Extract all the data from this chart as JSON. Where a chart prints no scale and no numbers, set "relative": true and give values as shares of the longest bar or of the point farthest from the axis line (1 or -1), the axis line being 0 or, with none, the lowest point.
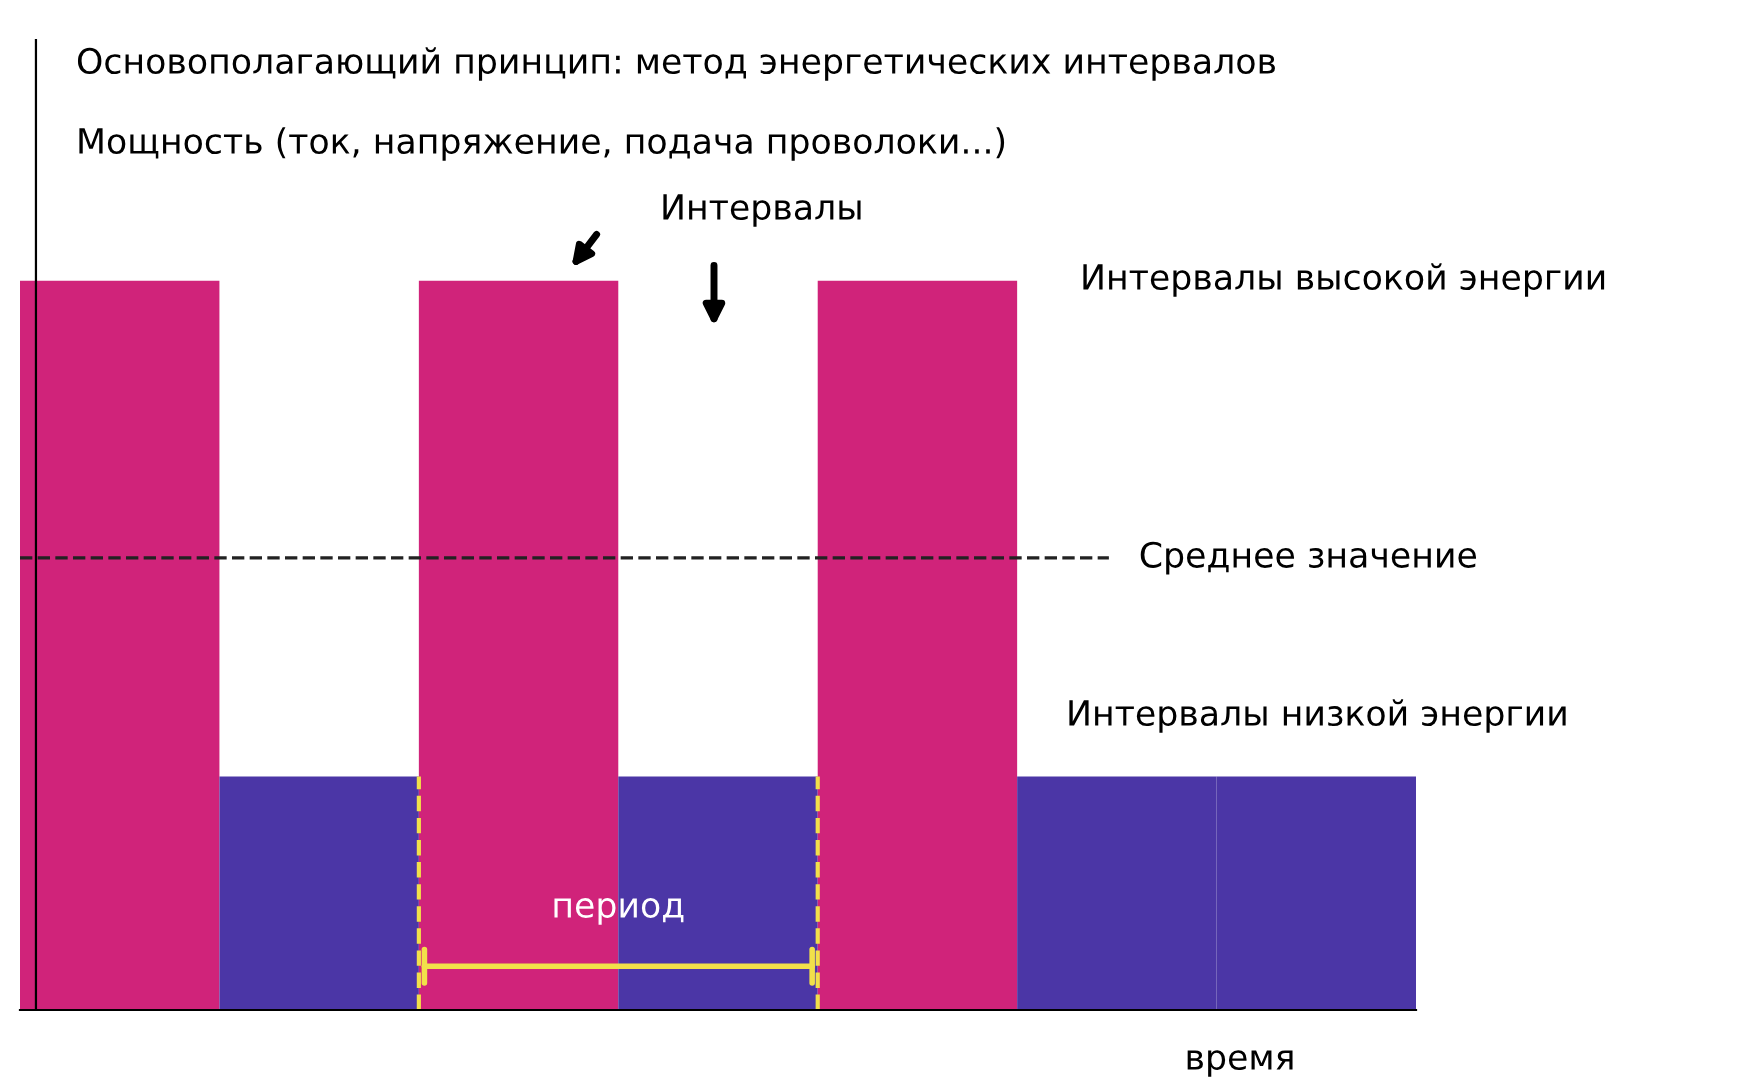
{
  "chart_data": {
    "type": "bar",
    "relative": true,
    "title": "Основополагающий принцип: метод энергетических интервалов",
    "ylabel": "Мощность (ток, напряжение, подача проволоки...)",
    "xlabel": "время",
    "categories": [
      null,
      null,
      null,
      null,
      null,
      null,
      null
    ],
    "values": [
      1,
      0.32,
      1,
      0.32,
      1,
      0.32,
      0.32
    ],
    "colors": [
      "#d0237a",
      "#4b36a6",
      "#d0237a",
      "#4b36a6",
      "#d0237a",
      "#4b36a6",
      "#4b36a6"
    ],
    "ref_lines": [
      {
        "axis": "y",
        "value": 0.62,
        "label": "Среднее значение",
        "line_style": "dashed",
        "color": "#222222"
      }
    ],
    "annotations": [
      "Интервалы",
      "Интервалы высокой энергии",
      "Интервалы низкой энергии",
      "период"
    ],
    "grid": false
  }
}
